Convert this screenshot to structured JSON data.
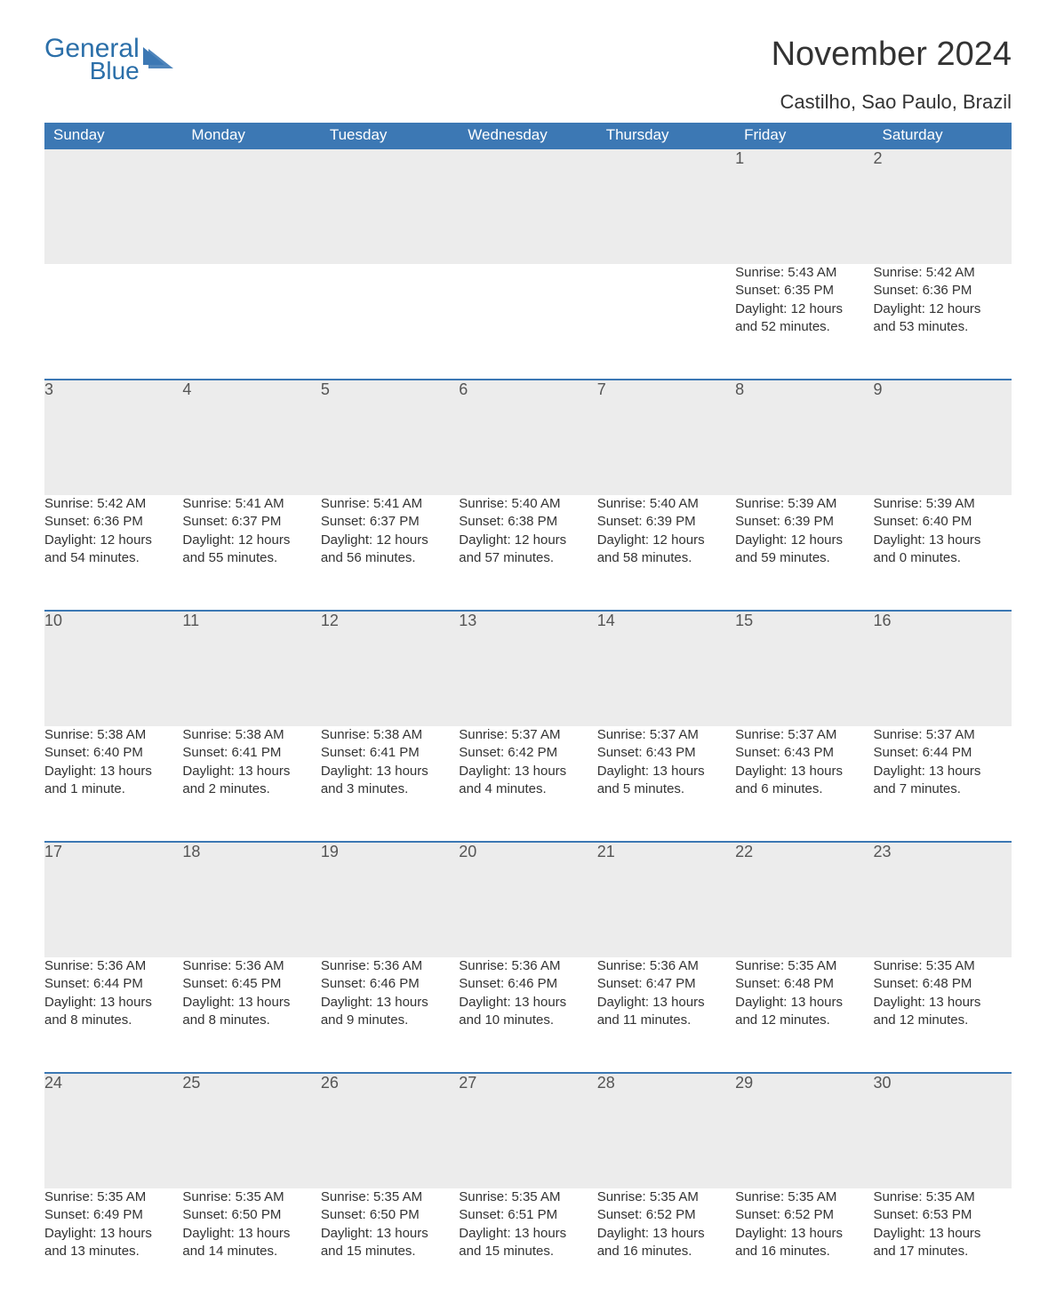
{
  "logo": {
    "general": "General",
    "blue": "Blue",
    "tri_color": "#3c78b4"
  },
  "title": "November 2024",
  "location": "Castilho, Sao Paulo, Brazil",
  "colors": {
    "header_bg": "#3c78b4",
    "header_text": "#ffffff",
    "daynum_bg": "#ececec",
    "daynum_border": "#3c78b4",
    "body_text": "#333333",
    "logo_text": "#2b6fa9"
  },
  "weekdays": [
    "Sunday",
    "Monday",
    "Tuesday",
    "Wednesday",
    "Thursday",
    "Friday",
    "Saturday"
  ],
  "weeks": [
    [
      null,
      null,
      null,
      null,
      null,
      {
        "n": "1",
        "sr": "Sunrise: 5:43 AM",
        "ss": "Sunset: 6:35 PM",
        "dl1": "Daylight: 12 hours",
        "dl2": "and 52 minutes."
      },
      {
        "n": "2",
        "sr": "Sunrise: 5:42 AM",
        "ss": "Sunset: 6:36 PM",
        "dl1": "Daylight: 12 hours",
        "dl2": "and 53 minutes."
      }
    ],
    [
      {
        "n": "3",
        "sr": "Sunrise: 5:42 AM",
        "ss": "Sunset: 6:36 PM",
        "dl1": "Daylight: 12 hours",
        "dl2": "and 54 minutes."
      },
      {
        "n": "4",
        "sr": "Sunrise: 5:41 AM",
        "ss": "Sunset: 6:37 PM",
        "dl1": "Daylight: 12 hours",
        "dl2": "and 55 minutes."
      },
      {
        "n": "5",
        "sr": "Sunrise: 5:41 AM",
        "ss": "Sunset: 6:37 PM",
        "dl1": "Daylight: 12 hours",
        "dl2": "and 56 minutes."
      },
      {
        "n": "6",
        "sr": "Sunrise: 5:40 AM",
        "ss": "Sunset: 6:38 PM",
        "dl1": "Daylight: 12 hours",
        "dl2": "and 57 minutes."
      },
      {
        "n": "7",
        "sr": "Sunrise: 5:40 AM",
        "ss": "Sunset: 6:39 PM",
        "dl1": "Daylight: 12 hours",
        "dl2": "and 58 minutes."
      },
      {
        "n": "8",
        "sr": "Sunrise: 5:39 AM",
        "ss": "Sunset: 6:39 PM",
        "dl1": "Daylight: 12 hours",
        "dl2": "and 59 minutes."
      },
      {
        "n": "9",
        "sr": "Sunrise: 5:39 AM",
        "ss": "Sunset: 6:40 PM",
        "dl1": "Daylight: 13 hours",
        "dl2": "and 0 minutes."
      }
    ],
    [
      {
        "n": "10",
        "sr": "Sunrise: 5:38 AM",
        "ss": "Sunset: 6:40 PM",
        "dl1": "Daylight: 13 hours",
        "dl2": "and 1 minute."
      },
      {
        "n": "11",
        "sr": "Sunrise: 5:38 AM",
        "ss": "Sunset: 6:41 PM",
        "dl1": "Daylight: 13 hours",
        "dl2": "and 2 minutes."
      },
      {
        "n": "12",
        "sr": "Sunrise: 5:38 AM",
        "ss": "Sunset: 6:41 PM",
        "dl1": "Daylight: 13 hours",
        "dl2": "and 3 minutes."
      },
      {
        "n": "13",
        "sr": "Sunrise: 5:37 AM",
        "ss": "Sunset: 6:42 PM",
        "dl1": "Daylight: 13 hours",
        "dl2": "and 4 minutes."
      },
      {
        "n": "14",
        "sr": "Sunrise: 5:37 AM",
        "ss": "Sunset: 6:43 PM",
        "dl1": "Daylight: 13 hours",
        "dl2": "and 5 minutes."
      },
      {
        "n": "15",
        "sr": "Sunrise: 5:37 AM",
        "ss": "Sunset: 6:43 PM",
        "dl1": "Daylight: 13 hours",
        "dl2": "and 6 minutes."
      },
      {
        "n": "16",
        "sr": "Sunrise: 5:37 AM",
        "ss": "Sunset: 6:44 PM",
        "dl1": "Daylight: 13 hours",
        "dl2": "and 7 minutes."
      }
    ],
    [
      {
        "n": "17",
        "sr": "Sunrise: 5:36 AM",
        "ss": "Sunset: 6:44 PM",
        "dl1": "Daylight: 13 hours",
        "dl2": "and 8 minutes."
      },
      {
        "n": "18",
        "sr": "Sunrise: 5:36 AM",
        "ss": "Sunset: 6:45 PM",
        "dl1": "Daylight: 13 hours",
        "dl2": "and 8 minutes."
      },
      {
        "n": "19",
        "sr": "Sunrise: 5:36 AM",
        "ss": "Sunset: 6:46 PM",
        "dl1": "Daylight: 13 hours",
        "dl2": "and 9 minutes."
      },
      {
        "n": "20",
        "sr": "Sunrise: 5:36 AM",
        "ss": "Sunset: 6:46 PM",
        "dl1": "Daylight: 13 hours",
        "dl2": "and 10 minutes."
      },
      {
        "n": "21",
        "sr": "Sunrise: 5:36 AM",
        "ss": "Sunset: 6:47 PM",
        "dl1": "Daylight: 13 hours",
        "dl2": "and 11 minutes."
      },
      {
        "n": "22",
        "sr": "Sunrise: 5:35 AM",
        "ss": "Sunset: 6:48 PM",
        "dl1": "Daylight: 13 hours",
        "dl2": "and 12 minutes."
      },
      {
        "n": "23",
        "sr": "Sunrise: 5:35 AM",
        "ss": "Sunset: 6:48 PM",
        "dl1": "Daylight: 13 hours",
        "dl2": "and 12 minutes."
      }
    ],
    [
      {
        "n": "24",
        "sr": "Sunrise: 5:35 AM",
        "ss": "Sunset: 6:49 PM",
        "dl1": "Daylight: 13 hours",
        "dl2": "and 13 minutes."
      },
      {
        "n": "25",
        "sr": "Sunrise: 5:35 AM",
        "ss": "Sunset: 6:50 PM",
        "dl1": "Daylight: 13 hours",
        "dl2": "and 14 minutes."
      },
      {
        "n": "26",
        "sr": "Sunrise: 5:35 AM",
        "ss": "Sunset: 6:50 PM",
        "dl1": "Daylight: 13 hours",
        "dl2": "and 15 minutes."
      },
      {
        "n": "27",
        "sr": "Sunrise: 5:35 AM",
        "ss": "Sunset: 6:51 PM",
        "dl1": "Daylight: 13 hours",
        "dl2": "and 15 minutes."
      },
      {
        "n": "28",
        "sr": "Sunrise: 5:35 AM",
        "ss": "Sunset: 6:52 PM",
        "dl1": "Daylight: 13 hours",
        "dl2": "and 16 minutes."
      },
      {
        "n": "29",
        "sr": "Sunrise: 5:35 AM",
        "ss": "Sunset: 6:52 PM",
        "dl1": "Daylight: 13 hours",
        "dl2": "and 16 minutes."
      },
      {
        "n": "30",
        "sr": "Sunrise: 5:35 AM",
        "ss": "Sunset: 6:53 PM",
        "dl1": "Daylight: 13 hours",
        "dl2": "and 17 minutes."
      }
    ]
  ]
}
